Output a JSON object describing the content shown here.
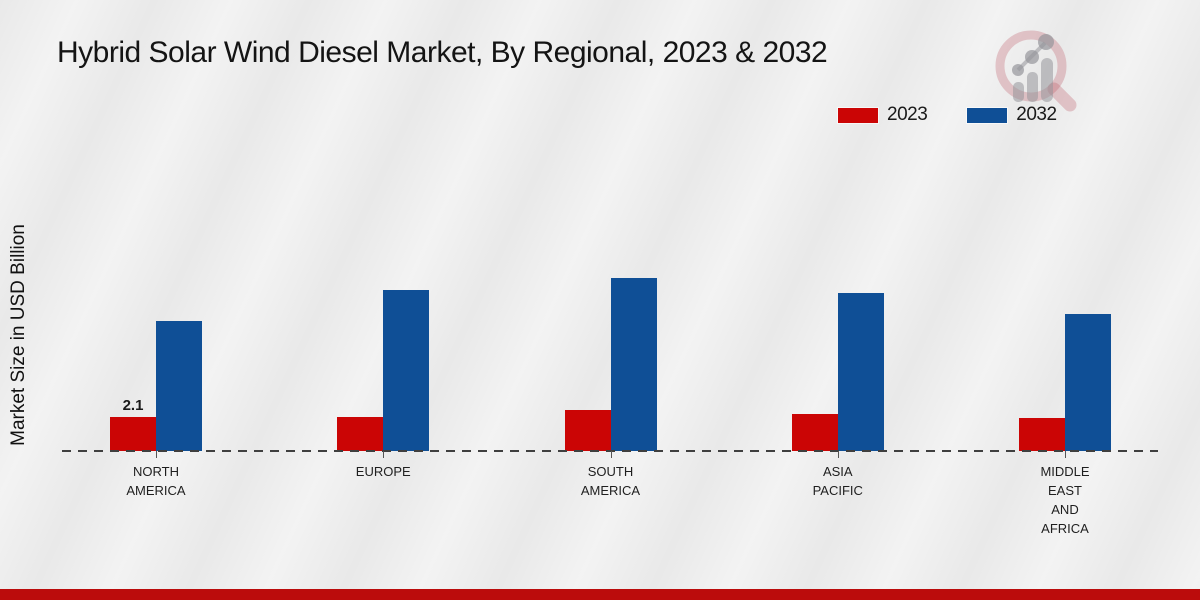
{
  "header": {
    "title": "Hybrid Solar Wind Diesel Market, By Regional, 2023 & 2032"
  },
  "colors": {
    "series_2023": "#cb0505",
    "series_2032": "#0f4f96",
    "footer_strip": "#bb0c0c",
    "background": "#e9e9e9",
    "axis_dash": "#3f3f3f"
  },
  "watermark": {
    "icon": "magnifier-bar-chart-logo-icon"
  },
  "chart_data": {
    "type": "bar",
    "title": "Hybrid Solar Wind Diesel Market, By Regional, 2023 & 2032",
    "xlabel": "",
    "ylabel": "Market Size in USD Billion",
    "categories": [
      "NORTH AMERICA",
      "EUROPE",
      "SOUTH AMERICA",
      "ASIA PACIFIC",
      "MIDDLE EAST AND AFRICA"
    ],
    "series": [
      {
        "name": "2023",
        "color": "#cb0505",
        "values": [
          2.1,
          2.1,
          2.5,
          2.3,
          2.0
        ]
      },
      {
        "name": "2032",
        "color": "#0f4f96",
        "values": [
          8.0,
          9.9,
          10.6,
          9.7,
          8.4
        ]
      }
    ],
    "point_labels": [
      {
        "series_index": 0,
        "category_index": 0,
        "text": "2.1"
      }
    ],
    "ylim": [
      0,
      12
    ],
    "grid": false,
    "legend_position": "top-right",
    "x_axis_style": "dashed baseline, no y-axis line, no y tick labels"
  }
}
